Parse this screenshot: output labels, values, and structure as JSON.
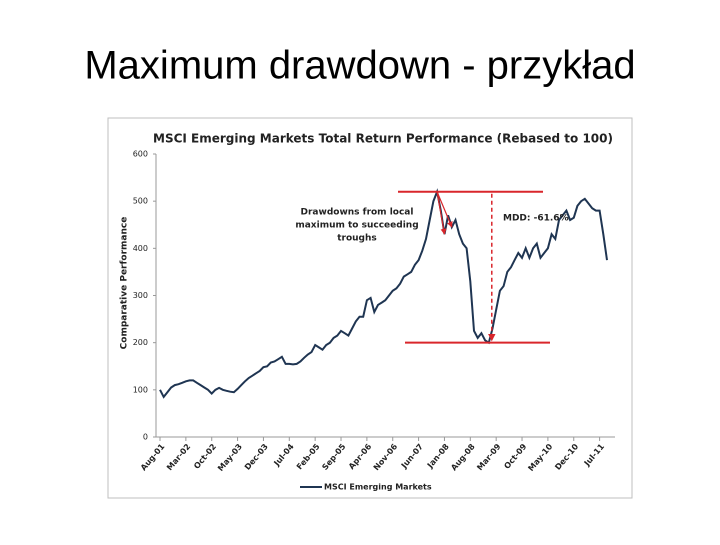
{
  "slide_title": "Maximum drawdown - przykład",
  "chart_data": {
    "type": "line",
    "title": "MSCI Emerging Markets Total Return Performance (Rebased to 100)",
    "y_label": "Comparative Performance",
    "annotations": {
      "drawdowns": [
        "Drawdowns from local",
        "maximum to succeeding",
        "troughs"
      ],
      "mdd": "MDD: -61.6%"
    },
    "categories": [
      "Aug-01",
      null,
      null,
      null,
      null,
      null,
      null,
      "Mar-02",
      null,
      null,
      null,
      null,
      null,
      null,
      "Oct-02",
      null,
      null,
      null,
      null,
      null,
      null,
      "May-03",
      null,
      null,
      null,
      null,
      null,
      null,
      "Dec-03",
      null,
      null,
      null,
      null,
      null,
      null,
      "Jul-04",
      null,
      null,
      null,
      null,
      null,
      null,
      "Feb-05",
      null,
      null,
      null,
      null,
      null,
      null,
      "Sep-05",
      null,
      null,
      null,
      null,
      null,
      null,
      "Apr-06",
      null,
      null,
      null,
      null,
      null,
      null,
      "Nov-06",
      null,
      null,
      null,
      null,
      null,
      null,
      "Jun-07",
      null,
      null,
      null,
      null,
      null,
      null,
      "Jan-08",
      null,
      null,
      null,
      null,
      null,
      null,
      "Aug-08",
      null,
      null,
      null,
      null,
      null,
      null,
      "Mar-09",
      null,
      null,
      null,
      null,
      null,
      null,
      "Oct-09",
      null,
      null,
      null,
      null,
      null,
      null,
      "May-10",
      null,
      null,
      null,
      null,
      null,
      null,
      "Dec-10",
      null,
      null,
      null,
      null,
      null,
      null,
      "Jul-11",
      null,
      null
    ],
    "series": [
      {
        "name": "MSCI Emerging Markets",
        "color": "#1f3552",
        "values": [
          100,
          85,
          95,
          105,
          110,
          112,
          115,
          118,
          120,
          120,
          115,
          110,
          105,
          100,
          92,
          100,
          104,
          100,
          98,
          96,
          95,
          102,
          110,
          118,
          125,
          130,
          135,
          140,
          148,
          150,
          158,
          160,
          165,
          170,
          155,
          155,
          154,
          155,
          160,
          168,
          175,
          180,
          195,
          190,
          185,
          195,
          200,
          210,
          215,
          225,
          220,
          215,
          230,
          245,
          255,
          255,
          290,
          295,
          265,
          280,
          285,
          290,
          300,
          310,
          315,
          325,
          340,
          345,
          350,
          365,
          375,
          395,
          420,
          460,
          500,
          520,
          480,
          430,
          470,
          445,
          460,
          430,
          410,
          400,
          330,
          225,
          210,
          220,
          205,
          200,
          230,
          270,
          310,
          320,
          350,
          360,
          375,
          390,
          380,
          400,
          380,
          400,
          410,
          380,
          390,
          400,
          430,
          420,
          460,
          470,
          480,
          460,
          465,
          490,
          500,
          505,
          495,
          485,
          480,
          480,
          430,
          375
        ]
      }
    ],
    "ylim": [
      0,
      600
    ],
    "yticks": [
      0,
      100,
      200,
      300,
      400,
      500,
      600
    ],
    "legend": "bottom",
    "grid": false,
    "annotation_color": "#d9262b"
  }
}
